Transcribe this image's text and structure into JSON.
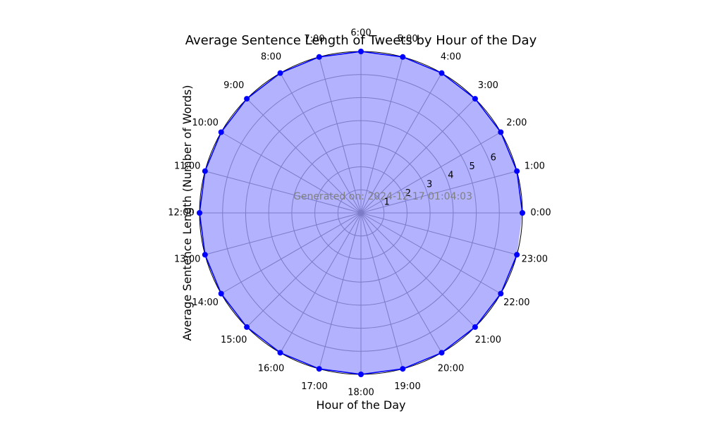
{
  "chart_data": {
    "type": "line",
    "subtype": "polar",
    "title": "Average Sentence Length of Tweets by Hour of the Day",
    "xlabel": "Hour of the Day",
    "ylabel": "Average Sentence Length (Number of Words)",
    "annotation": "Generated on: 2024-12-17 01:04:03",
    "categories": [
      "0:00",
      "1:00",
      "2:00",
      "3:00",
      "4:00",
      "5:00",
      "6:00",
      "7:00",
      "8:00",
      "9:00",
      "10:00",
      "11:00",
      "12:00",
      "13:00",
      "14:00",
      "15:00",
      "16:00",
      "17:00",
      "18:00",
      "19:00",
      "20:00",
      "21:00",
      "22:00",
      "23:00"
    ],
    "values": [
      7.0,
      7.0,
      7.0,
      7.0,
      7.0,
      7.0,
      7.0,
      7.0,
      7.0,
      7.0,
      7.0,
      7.0,
      7.0,
      7.0,
      7.0,
      7.0,
      7.0,
      7.0,
      7.0,
      7.0,
      7.0,
      7.0,
      7.0,
      7.0
    ],
    "rlim": [
      0,
      7.0
    ],
    "rticks": [
      1,
      2,
      3,
      4,
      5,
      6
    ],
    "grid": true,
    "line_color": "#0000ff",
    "fill_color": "#0000ff",
    "fill_alpha": 0.3
  }
}
